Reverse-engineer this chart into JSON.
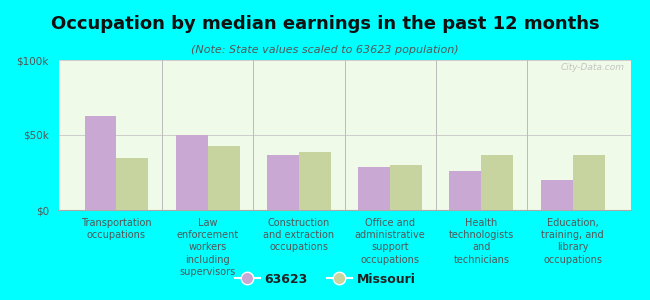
{
  "title": "Occupation by median earnings in the past 12 months",
  "subtitle": "(Note: State values scaled to 63623 population)",
  "categories": [
    "Transportation\noccupations",
    "Law\nenforcement\nworkers\nincluding\nsupervisors",
    "Construction\nand extraction\noccupations",
    "Office and\nadministrative\nsupport\noccupations",
    "Health\ntechnologists\nand\ntechnicians",
    "Education,\ntraining, and\nlibrary\noccupations"
  ],
  "values_63623": [
    63000,
    50000,
    37000,
    29000,
    26000,
    20000
  ],
  "values_missouri": [
    35000,
    43000,
    39000,
    30000,
    37000,
    37000
  ],
  "color_63623": "#c9a8d4",
  "color_missouri": "#c8d4a0",
  "bar_width": 0.35,
  "ylim": [
    0,
    100000
  ],
  "yticks": [
    0,
    50000,
    100000
  ],
  "ytick_labels": [
    "$0",
    "$50k",
    "$100k"
  ],
  "background_color": "#00ffff",
  "plot_bg_color": "#f0fae8",
  "legend_label_63623": "63623",
  "legend_label_missouri": "Missouri",
  "watermark": "City-Data.com",
  "title_fontsize": 13,
  "subtitle_fontsize": 8,
  "tick_label_fontsize": 7,
  "ytick_fontsize": 7.5
}
